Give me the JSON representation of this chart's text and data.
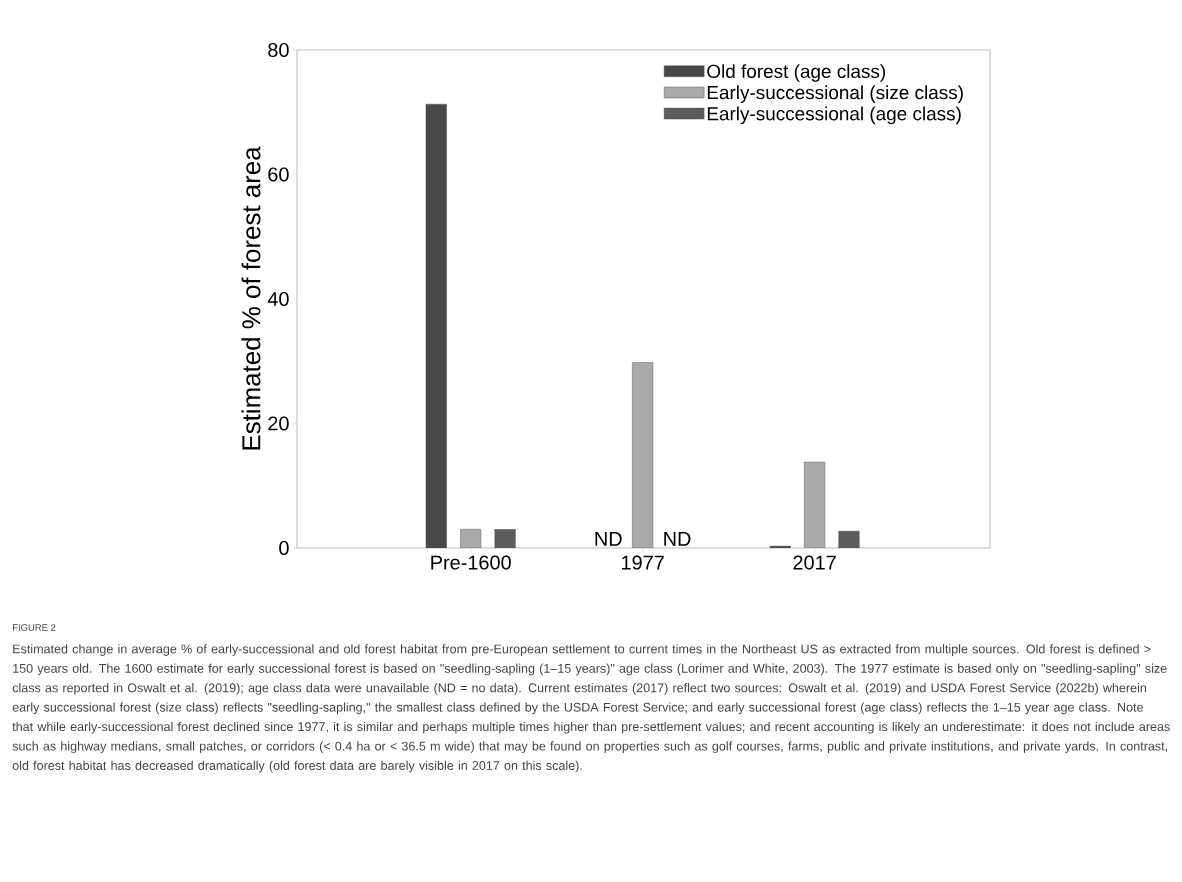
{
  "chart_data": {
    "type": "bar",
    "ylabel": "Estimated % of forest area",
    "categories": [
      "Pre-1600",
      "1977",
      "2017"
    ],
    "series": [
      {
        "name": "Old forest (age class)",
        "color": "#484848",
        "values": [
          71.3,
          null,
          0.3
        ],
        "value_labels": [
          null,
          "ND",
          null
        ]
      },
      {
        "name": "Early-successional (size class)",
        "color": "#a9a9a9",
        "values": [
          3.0,
          29.8,
          13.8
        ]
      },
      {
        "name": "Early-successional (age class)",
        "color": "#5c5c5c",
        "values": [
          3.0,
          null,
          2.7
        ],
        "value_labels": [
          null,
          "ND",
          null
        ]
      }
    ],
    "ylim": [
      0,
      80
    ],
    "yticks": [
      0,
      20,
      40,
      60,
      80
    ],
    "grid": false,
    "legend": "top right",
    "annotations": [
      "FIGURE 2",
      "Estimated change in average % of early-successional and old forest habitat from pre-European settlement to current times in the Northeast US as extracted from multiple sources. Old forest is defined > 150 years old. The 1600 estimate for early successional forest is based on \"seedling-sapling (1–15 years)\" age class (Lorimer and White, 2003). The 1977 estimate is based only on \"seedling-sapling\" size class as reported in Oswalt et al. (2019); age class data were unavailable (ND = no data). Current estimates (2017) reflect two sources: Oswalt et al. (2019) and USDA Forest Service (2022b) wherein early successional forest (size class) reflects \"seedling-sapling,\" the smallest class defined by the USDA Forest Service; and early successional forest (age class) reflects the 1–15 year age class. Note that while early-successional forest declined since 1977, it is similar and perhaps multiple times higher than pre-settlement values; and recent accounting is likely an underestimate: it does not include areas such as highway medians, small patches, or corridors (< 0.4 ha or < 36.5 m wide) that may be found on properties such as golf courses, farms, public and private institutions, and private yards. In contrast, old forest habitat has decreased dramatically (old forest data are barely visible in 2017 on this scale)."
    ]
  }
}
